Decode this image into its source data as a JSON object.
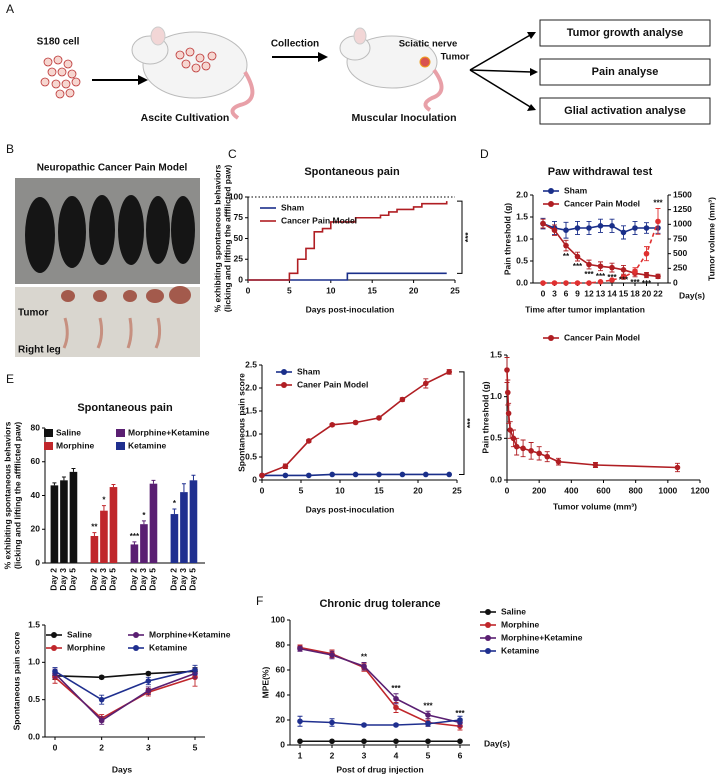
{
  "figure": {
    "panel_labels": [
      "A",
      "B",
      "C",
      "D",
      "E",
      "F"
    ],
    "diagram": {
      "s180": "S180 cell",
      "ascite": "Ascite Cultivation",
      "collection": "Collection",
      "sciatic": "Sciatic nerve",
      "tumor": "Tumor",
      "muscular": "Muscular Inoculation",
      "outcomes": [
        "Tumor growth analyse",
        "Pain analyse",
        "Glial activation analyse"
      ]
    },
    "photo": {
      "title": "Neuropathic Cancer Pain Model",
      "tumor": "Tumor",
      "leg": "Right leg"
    }
  },
  "chart_data": [
    {
      "type": "line",
      "step": true,
      "markers": false,
      "title": "Spontaneous pain",
      "xlabel": "Days post-inoculation",
      "ylabel": [
        "% exhibiting spontaneous behaviors",
        "(licking and lifting the affflicted paw)"
      ],
      "xlim": [
        0,
        25
      ],
      "xticks": [
        0,
        5,
        10,
        15,
        20,
        25
      ],
      "ylim": [
        0,
        100
      ],
      "yticks": [
        0,
        25,
        50,
        75,
        100
      ],
      "ref_line": 100,
      "significance": "***",
      "series": [
        {
          "name": "Sham",
          "color": "#1a2f8a",
          "x": [
            0,
            12,
            24
          ],
          "values": [
            0,
            8,
            8
          ]
        },
        {
          "name": "Cancer Pain Model",
          "color": "#b01e23",
          "x": [
            0,
            5,
            6,
            7,
            8,
            9,
            10,
            12,
            13,
            15,
            16,
            17,
            18,
            20,
            21,
            22,
            24
          ],
          "values": [
            0,
            8,
            25,
            38,
            58,
            62,
            70,
            70,
            75,
            75,
            78,
            82,
            85,
            88,
            92,
            92,
            95
          ]
        }
      ]
    },
    {
      "type": "line",
      "title": "Paw withdrawal test",
      "xlabel": "Time after tumor implantation",
      "x_unit": "Day(s)",
      "ylabel": "Pain threshold (g)",
      "y2label": "Tumor volume (mm³)",
      "categories": [
        "0",
        "3",
        "6",
        "9",
        "12",
        "13",
        "14",
        "15",
        "18",
        "20",
        "22"
      ],
      "ylim": [
        0,
        2
      ],
      "yticks": [
        {
          "value": 0,
          "label": "0.0"
        },
        0.5,
        {
          "value": 1,
          "label": "1.0"
        },
        1.5,
        {
          "value": 2,
          "label": "2.0"
        }
      ],
      "y2lim": [
        0,
        1500
      ],
      "y2ticks": [
        0,
        250,
        500,
        750,
        1000,
        1250,
        1500
      ],
      "series": [
        {
          "name": "Sham",
          "color": "#1a2f8a",
          "values": [
            1.35,
            1.25,
            1.2,
            1.25,
            1.25,
            1.3,
            1.3,
            1.15,
            1.25,
            1.25,
            1.25
          ],
          "errors": [
            0.12,
            0.15,
            0.18,
            0.15,
            0.15,
            0.15,
            0.15,
            0.15,
            0.15,
            0.12,
            0.12
          ]
        },
        {
          "name": "Cancer Pain Model",
          "color": "#b01e23",
          "values": [
            1.35,
            1.2,
            0.85,
            0.6,
            0.42,
            0.38,
            0.35,
            0.3,
            0.22,
            0.18,
            0.15
          ],
          "errors": [
            0.1,
            0.12,
            0.12,
            0.1,
            0.1,
            0.1,
            0.1,
            0.1,
            0.08,
            0.06,
            0.05
          ]
        },
        {
          "color": "#e03030",
          "axis": "y2",
          "dash": true,
          "values": [
            0,
            0,
            0,
            0,
            0,
            20,
            50,
            100,
            200,
            500,
            1050
          ],
          "errors": [
            0,
            0,
            0,
            0,
            0,
            10,
            20,
            30,
            60,
            120,
            220
          ]
        }
      ],
      "annotations": [
        {
          "series": "Cancer Pain Model",
          "x": "6",
          "text": "**"
        },
        {
          "series": "Cancer Pain Model",
          "x": "9",
          "text": "***"
        },
        {
          "series": "Cancer Pain Model",
          "x": "12",
          "text": "***"
        },
        {
          "series": "Cancer Pain Model",
          "x": "13",
          "text": "***"
        },
        {
          "series": "Cancer Pain Model",
          "x": "14",
          "text": "***"
        },
        {
          "series": "Cancer Pain Model",
          "x": "15",
          "text": "***"
        },
        {
          "series": "Cancer Pain Model",
          "x": "18",
          "text": "***"
        },
        {
          "series": "Cancer Pain Model",
          "x": "20",
          "text": "***"
        },
        {
          "axis": "y2",
          "x": "22",
          "text": "***"
        }
      ]
    },
    {
      "type": "bar",
      "title": "Spontaneous pain",
      "ylabel": [
        "% exhibiting spontaneous behaviors",
        "(licking and lifting the affflicted paw)"
      ],
      "ylim": [
        0,
        80
      ],
      "yticks": [
        0,
        20,
        40,
        60,
        80
      ],
      "categories": [
        "Day 2",
        "Day 3",
        "Day 5"
      ],
      "series": [
        {
          "name": "Saline",
          "color": "#111111",
          "values": [
            46,
            49,
            54
          ],
          "errors": [
            1.5,
            2,
            2
          ]
        },
        {
          "name": "Morphine",
          "color": "#c0262b",
          "values": [
            16,
            31,
            45
          ],
          "errors": [
            2,
            3,
            1.5
          ]
        },
        {
          "name": "Morphine+Ketamine",
          "color": "#5a1f72",
          "values": [
            11,
            23,
            47
          ],
          "errors": [
            1.5,
            2,
            2
          ]
        },
        {
          "name": "Ketamine",
          "color": "#1f2f8f",
          "values": [
            29,
            42,
            49
          ],
          "errors": [
            3,
            5,
            3
          ]
        }
      ],
      "annotations": [
        {
          "series": "Morphine",
          "x": "Day 2",
          "text": "**"
        },
        {
          "series": "Morphine",
          "x": "Day 3",
          "text": "*"
        },
        {
          "series": "Morphine+Ketamine",
          "x": "Day 2",
          "text": "***"
        },
        {
          "series": "Morphine+Ketamine",
          "x": "Day 3",
          "text": "*"
        },
        {
          "series": "Ketamine",
          "x": "Day 2",
          "text": "*"
        }
      ]
    },
    {
      "type": "line",
      "ylabel": "Spontaneous pain score",
      "xlabel": "Days post-inoculation",
      "xlim": [
        0,
        25
      ],
      "xticks": [
        0,
        5,
        10,
        15,
        20,
        25
      ],
      "ylim": [
        0,
        2.5
      ],
      "yticks": [
        0,
        0.5,
        {
          "value": 1,
          "label": "1.0"
        },
        1.5,
        {
          "value": 2,
          "label": "2.0"
        },
        2.5
      ],
      "significance": "***",
      "series": [
        {
          "name": "Sham",
          "color": "#1a2f8a",
          "x": [
            0,
            3,
            6,
            9,
            12,
            15,
            18,
            21,
            24
          ],
          "values": [
            0.1,
            0.1,
            0.1,
            0.12,
            0.12,
            0.12,
            0.12,
            0.12,
            0.12
          ]
        },
        {
          "name": "Caner Pain Model",
          "color": "#b01e23",
          "x": [
            0,
            3,
            6,
            9,
            12,
            15,
            18,
            21,
            24
          ],
          "values": [
            0.1,
            0.3,
            0.85,
            1.2,
            1.25,
            1.35,
            1.75,
            2.1,
            2.35
          ],
          "errors": [
            0.02,
            0.05,
            0.03,
            0.03,
            0.03,
            0.03,
            0.04,
            0.1,
            0.05
          ]
        }
      ]
    },
    {
      "type": "line",
      "ylabel": "Pain threshold (g)",
      "xlabel": "Tumor volume (mm³)",
      "xlim": [
        0,
        1200
      ],
      "xticks": [
        0,
        200,
        400,
        600,
        800,
        1000,
        1200
      ],
      "ylim": [
        0,
        1.5
      ],
      "yticks": [
        {
          "value": 0,
          "label": "0.0"
        },
        0.5,
        {
          "value": 1,
          "label": "1.0"
        },
        1.5
      ],
      "series": [
        {
          "name": "Cancer Pain Model",
          "color": "#b01e23",
          "x": [
            0,
            5,
            10,
            20,
            40,
            60,
            100,
            150,
            200,
            250,
            320,
            550,
            1060
          ],
          "values": [
            1.32,
            1.05,
            0.8,
            0.6,
            0.5,
            0.4,
            0.38,
            0.35,
            0.32,
            0.28,
            0.22,
            0.18,
            0.15
          ],
          "errors": [
            0.15,
            0.15,
            0.12,
            0.1,
            0.1,
            0.1,
            0.1,
            0.1,
            0.08,
            0.06,
            0.04,
            0.03,
            0.05
          ]
        }
      ]
    },
    {
      "type": "line",
      "ylabel": "Spontaneous pain score",
      "xlabel": "Days",
      "categories": [
        "0",
        "2",
        "3",
        "5"
      ],
      "ylim": [
        0,
        1.5
      ],
      "yticks": [
        {
          "value": 0,
          "label": "0.0"
        },
        0.5,
        {
          "value": 1,
          "label": "1.0"
        },
        1.5
      ],
      "series": [
        {
          "name": "Saline",
          "color": "#111111",
          "values": [
            0.82,
            0.8,
            0.85,
            0.88
          ],
          "errors": [
            0.05,
            0.02,
            0.02,
            0.05
          ]
        },
        {
          "name": "Morphine",
          "color": "#c0262b",
          "values": [
            0.8,
            0.25,
            0.6,
            0.8
          ],
          "errors": [
            0.08,
            0.05,
            0.05,
            0.12
          ]
        },
        {
          "name": "Morphine+Ketamine",
          "color": "#5a1f72",
          "values": [
            0.85,
            0.22,
            0.62,
            0.85
          ],
          "errors": [
            0.06,
            0.05,
            0.05,
            0.06
          ]
        },
        {
          "name": "Ketamine",
          "color": "#1f2f8f",
          "values": [
            0.88,
            0.5,
            0.75,
            0.9
          ],
          "errors": [
            0.05,
            0.06,
            0.05,
            0.06
          ]
        }
      ]
    },
    {
      "type": "line",
      "title": "Chronic drug tolerance",
      "ylabel": "MPE(%)",
      "xlabel": "Post of drug injection",
      "x_unit": "Day(s)",
      "categories": [
        "1",
        "2",
        "3",
        "4",
        "5",
        "6"
      ],
      "ylim": [
        0,
        100
      ],
      "yticks": [
        0,
        20,
        40,
        60,
        80,
        100
      ],
      "series": [
        {
          "name": "Saline",
          "color": "#111111",
          "values": [
            3,
            3,
            3,
            3,
            3,
            3
          ]
        },
        {
          "name": "Morphine",
          "color": "#c0262b",
          "values": [
            78,
            73,
            62,
            30,
            18,
            15
          ],
          "errors": [
            2,
            3,
            3,
            4,
            3,
            3
          ]
        },
        {
          "name": "Morphine+Ketamine",
          "color": "#5a1f72",
          "values": [
            77,
            72,
            63,
            37,
            24,
            18
          ],
          "errors": [
            2,
            3,
            3,
            4,
            3,
            3
          ]
        },
        {
          "name": "Ketamine",
          "color": "#1f2f8f",
          "values": [
            19,
            18,
            16,
            16,
            17,
            20
          ],
          "errors": [
            4,
            3,
            1,
            1,
            2,
            3
          ]
        }
      ],
      "annotations": [
        {
          "series": "Morphine+Ketamine",
          "x": "3",
          "text": "**"
        },
        {
          "series": "Morphine+Ketamine",
          "x": "4",
          "text": "***"
        },
        {
          "series": "Morphine+Ketamine",
          "x": "5",
          "text": "***"
        },
        {
          "series": "Morphine+Ketamine",
          "x": "6",
          "text": "***"
        }
      ]
    }
  ]
}
